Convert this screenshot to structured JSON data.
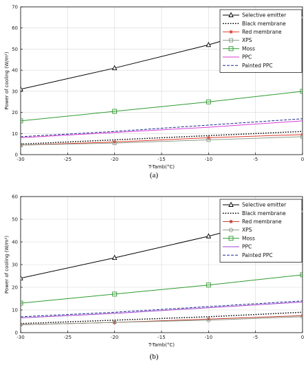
{
  "chart_data": [
    {
      "type": "line",
      "caption": "(a)",
      "xlabel": "T-Tamb(°C)",
      "ylabel": "Power of cooling (W/m²)",
      "xlim": [
        -30,
        0
      ],
      "ylim": [
        0,
        70
      ],
      "xticks": [
        -30,
        -25,
        -20,
        -15,
        -10,
        -5,
        0
      ],
      "yticks": [
        0,
        10,
        20,
        30,
        40,
        50,
        60,
        70
      ],
      "grid": true,
      "legend": "top-right",
      "x": [
        -30,
        -20,
        -10,
        0
      ],
      "series": [
        {
          "name": "Selective emitter",
          "color": "#000000",
          "dash": "solid",
          "marker": "triangle",
          "values": [
            31,
            41,
            52,
            65
          ]
        },
        {
          "name": "Black membrane",
          "color": "#000000",
          "dash": "dotted",
          "marker": "none",
          "values": [
            5,
            7,
            9,
            11
          ]
        },
        {
          "name": "Red membrane",
          "color": "#e03a2a",
          "dash": "solid",
          "marker": "star",
          "values": [
            4.5,
            6,
            8,
            9.5
          ]
        },
        {
          "name": "XPS",
          "color": "#8a9a8a",
          "dash": "solid",
          "marker": "square-gray",
          "values": [
            4.5,
            5.5,
            7,
            8.5
          ]
        },
        {
          "name": "Moss",
          "color": "#2e9a2e",
          "dash": "solid",
          "marker": "square",
          "values": [
            16,
            20.5,
            25,
            30
          ]
        },
        {
          "name": "PPC",
          "color": "#d63ad6",
          "dash": "solid",
          "marker": "none",
          "values": [
            8,
            10.5,
            13,
            16
          ]
        },
        {
          "name": "Painted PPC",
          "color": "#1a2a8a",
          "dash": "dashed",
          "marker": "none",
          "values": [
            8.5,
            11,
            14,
            17
          ]
        }
      ]
    },
    {
      "type": "line",
      "caption": "(b)",
      "xlabel": "T-Tamb(°C)",
      "ylabel": "Power of cooling (W/m²)",
      "xlim": [
        -30,
        0
      ],
      "ylim": [
        0,
        60
      ],
      "xticks": [
        -30,
        -25,
        -20,
        -15,
        -10,
        -5,
        0
      ],
      "yticks": [
        0,
        10,
        20,
        30,
        40,
        50,
        60
      ],
      "grid": true,
      "legend": "top-right",
      "x": [
        -30,
        -20,
        -10,
        0
      ],
      "series": [
        {
          "name": "Selective emitter",
          "color": "#000000",
          "dash": "solid",
          "marker": "triangle",
          "values": [
            24,
            33,
            42.5,
            53.5
          ]
        },
        {
          "name": "Black membrane",
          "color": "#000000",
          "dash": "dotted",
          "marker": "none",
          "values": [
            4,
            5.5,
            7,
            9
          ]
        },
        {
          "name": "Red membrane",
          "color": "#c0392b",
          "dash": "solid",
          "marker": "star",
          "values": [
            3.5,
            4.5,
            6,
            7.5
          ]
        },
        {
          "name": "XPS",
          "color": "#8a9a8a",
          "dash": "solid",
          "marker": "circle",
          "values": [
            3.5,
            4.5,
            5.5,
            7
          ]
        },
        {
          "name": "Moss",
          "color": "#2e9a2e",
          "dash": "solid",
          "marker": "square",
          "values": [
            13,
            17,
            21,
            25.5
          ]
        },
        {
          "name": "PPC",
          "color": "#a040d0",
          "dash": "solid",
          "marker": "none",
          "values": [
            6.5,
            8.5,
            11,
            13.5
          ]
        },
        {
          "name": "Painted PPC",
          "color": "#1a2a8a",
          "dash": "dashed",
          "marker": "none",
          "values": [
            7,
            9,
            11.5,
            14
          ]
        }
      ]
    }
  ]
}
